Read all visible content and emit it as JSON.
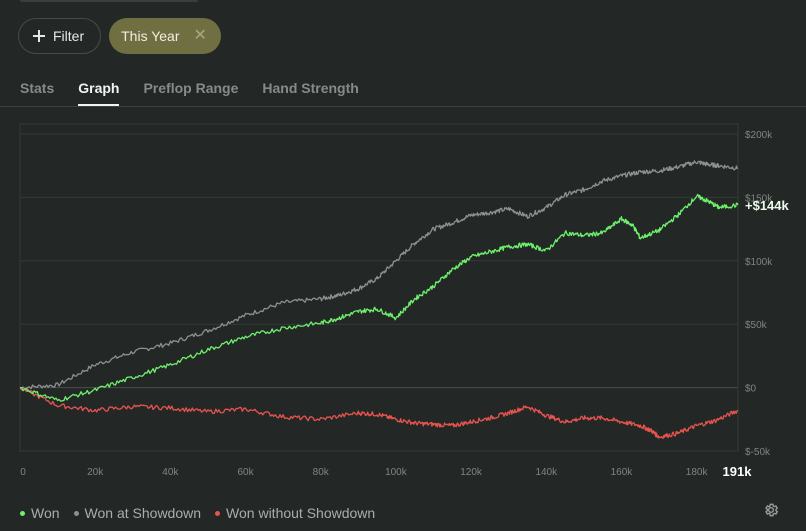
{
  "filters": {
    "filter_label": "Filter",
    "year_label": "This Year"
  },
  "tabs": [
    {
      "label": "Stats",
      "active": false
    },
    {
      "label": "Graph",
      "active": true
    },
    {
      "label": "Preflop Range",
      "active": false
    },
    {
      "label": "Hand Strength",
      "active": false
    }
  ],
  "colors": {
    "won": "#6ff06c",
    "showdown": "#8e908f",
    "without_showdown": "#e8534f"
  },
  "chart_data": {
    "type": "line",
    "x_ticks": [
      "0",
      "20k",
      "40k",
      "60k",
      "80k",
      "100k",
      "120k",
      "140k",
      "160k",
      "180k"
    ],
    "y_ticks": [
      "$200k",
      "$150k",
      "$100k",
      "$50k",
      "$0",
      "$-50k"
    ],
    "xlim": [
      0,
      191000
    ],
    "ylim": [
      -50000,
      200000
    ],
    "x_end_label": "191k",
    "end_value_label": "+$144k",
    "grid": true,
    "series": [
      {
        "name": "Won",
        "x": [
          0,
          10000,
          20000,
          30000,
          40000,
          50000,
          60000,
          70000,
          80000,
          85000,
          90000,
          95000,
          100000,
          105000,
          110000,
          115000,
          120000,
          125000,
          130000,
          135000,
          140000,
          145000,
          150000,
          155000,
          160000,
          163000,
          165000,
          170000,
          175000,
          180000,
          183000,
          186000,
          191000
        ],
        "values": [
          0,
          -10000,
          -2000,
          8000,
          18000,
          30000,
          40000,
          47000,
          51000,
          55000,
          60000,
          62000,
          55000,
          70000,
          80000,
          93000,
          103000,
          107000,
          111000,
          113000,
          108000,
          122000,
          120000,
          122000,
          133000,
          128000,
          118000,
          124000,
          136000,
          151000,
          147000,
          142000,
          144000
        ]
      },
      {
        "name": "Won at Showdown",
        "x": [
          0,
          10000,
          20000,
          30000,
          40000,
          50000,
          60000,
          70000,
          80000,
          85000,
          90000,
          95000,
          100000,
          105000,
          110000,
          115000,
          120000,
          125000,
          130000,
          135000,
          140000,
          145000,
          150000,
          155000,
          160000,
          165000,
          170000,
          175000,
          180000,
          183000,
          186000,
          191000
        ],
        "values": [
          0,
          2000,
          18000,
          28000,
          35000,
          45000,
          57000,
          67000,
          70000,
          73000,
          78000,
          86000,
          100000,
          114000,
          125000,
          130000,
          136000,
          138000,
          141000,
          135000,
          142000,
          152000,
          156000,
          163000,
          167000,
          170000,
          171000,
          174000,
          178000,
          176000,
          175000,
          173000
        ]
      },
      {
        "name": "Won without Showdown",
        "x": [
          0,
          10000,
          20000,
          30000,
          40000,
          50000,
          60000,
          70000,
          80000,
          90000,
          95000,
          100000,
          105000,
          110000,
          115000,
          120000,
          125000,
          130000,
          135000,
          140000,
          145000,
          150000,
          155000,
          160000,
          165000,
          168000,
          170000,
          175000,
          180000,
          185000,
          191000
        ],
        "values": [
          0,
          -14000,
          -18000,
          -15000,
          -16000,
          -19000,
          -17000,
          -23000,
          -25000,
          -20000,
          -21000,
          -25000,
          -28000,
          -29000,
          -30000,
          -27000,
          -24000,
          -20000,
          -15000,
          -22000,
          -27000,
          -24000,
          -24000,
          -27000,
          -30000,
          -34000,
          -39000,
          -36000,
          -30000,
          -26000,
          -18000
        ]
      }
    ]
  },
  "legend": [
    {
      "label": "Won",
      "color": "#6ff06c"
    },
    {
      "label": "Won at Showdown",
      "color": "#8e908f"
    },
    {
      "label": "Won without Showdown",
      "color": "#e8534f"
    }
  ]
}
